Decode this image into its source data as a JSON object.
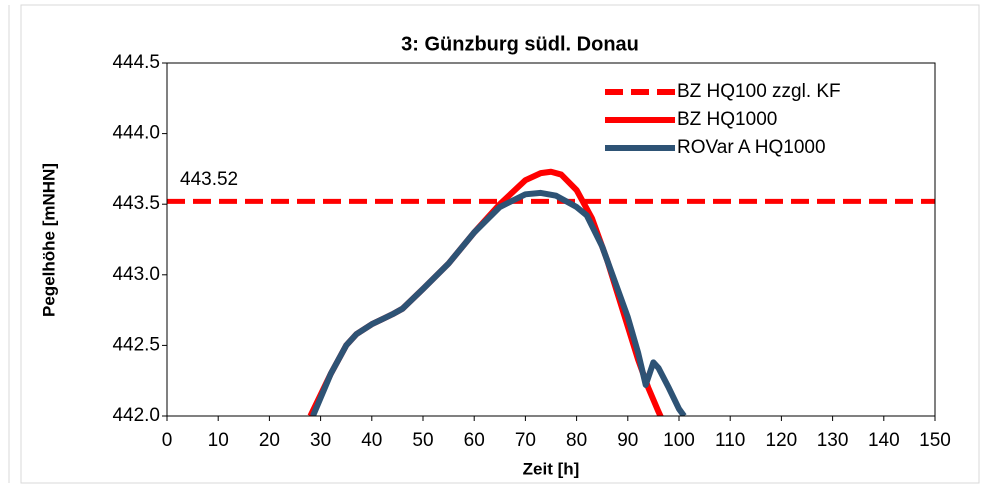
{
  "chart_data": {
    "type": "line",
    "title": "3: Günzburg südl. Donau",
    "xlabel": "Zeit [h]",
    "ylabel": "Pegelhöhe [mNHN]",
    "annotation": "443.52",
    "xlim": [
      0,
      150
    ],
    "xticks": [
      0,
      10,
      20,
      30,
      40,
      50,
      60,
      70,
      80,
      90,
      100,
      110,
      120,
      130,
      140,
      150
    ],
    "ylim": [
      442.0,
      444.5
    ],
    "yticks": [
      {
        "value": 442.0,
        "label": "442.0"
      },
      442.5,
      {
        "value": 443.0,
        "label": "443.0"
      },
      443.5,
      {
        "value": 444.0,
        "label": "444.0"
      },
      444.5
    ],
    "legend": "upper right",
    "series": [
      {
        "name": "BZ HQ100 zzgl. KF",
        "color": "#ff0000",
        "dashed": true,
        "x": [
          0,
          150
        ],
        "values": [
          443.52,
          443.52
        ]
      },
      {
        "name": "BZ HQ1000",
        "color": "#ff0000",
        "dashed": false,
        "x": [
          28,
          32,
          35,
          37,
          40,
          44,
          46,
          50,
          55,
          60,
          65,
          70,
          73,
          75,
          77,
          80,
          83,
          86,
          89,
          92,
          94,
          96,
          97
        ],
        "values": [
          442.0,
          442.3,
          442.5,
          442.58,
          442.65,
          442.72,
          442.76,
          442.9,
          443.08,
          443.3,
          443.5,
          443.67,
          443.72,
          443.73,
          443.71,
          443.6,
          443.4,
          443.1,
          442.75,
          442.4,
          442.2,
          442.03,
          441.95
        ]
      },
      {
        "name": "ROVar A HQ1000",
        "color": "#2e5375",
        "dashed": false,
        "x": [
          28.5,
          32,
          35,
          37,
          40,
          44,
          46,
          50,
          55,
          60,
          65,
          70,
          73,
          76,
          80,
          82,
          85,
          88,
          90,
          92,
          93.5,
          95,
          96,
          98,
          100,
          101
        ],
        "values": [
          442.0,
          442.3,
          442.5,
          442.58,
          442.65,
          442.72,
          442.76,
          442.9,
          443.08,
          443.3,
          443.48,
          443.57,
          443.58,
          443.56,
          443.48,
          443.42,
          443.2,
          442.9,
          442.7,
          442.45,
          442.22,
          442.38,
          442.34,
          442.2,
          442.05,
          442.0
        ]
      }
    ]
  }
}
